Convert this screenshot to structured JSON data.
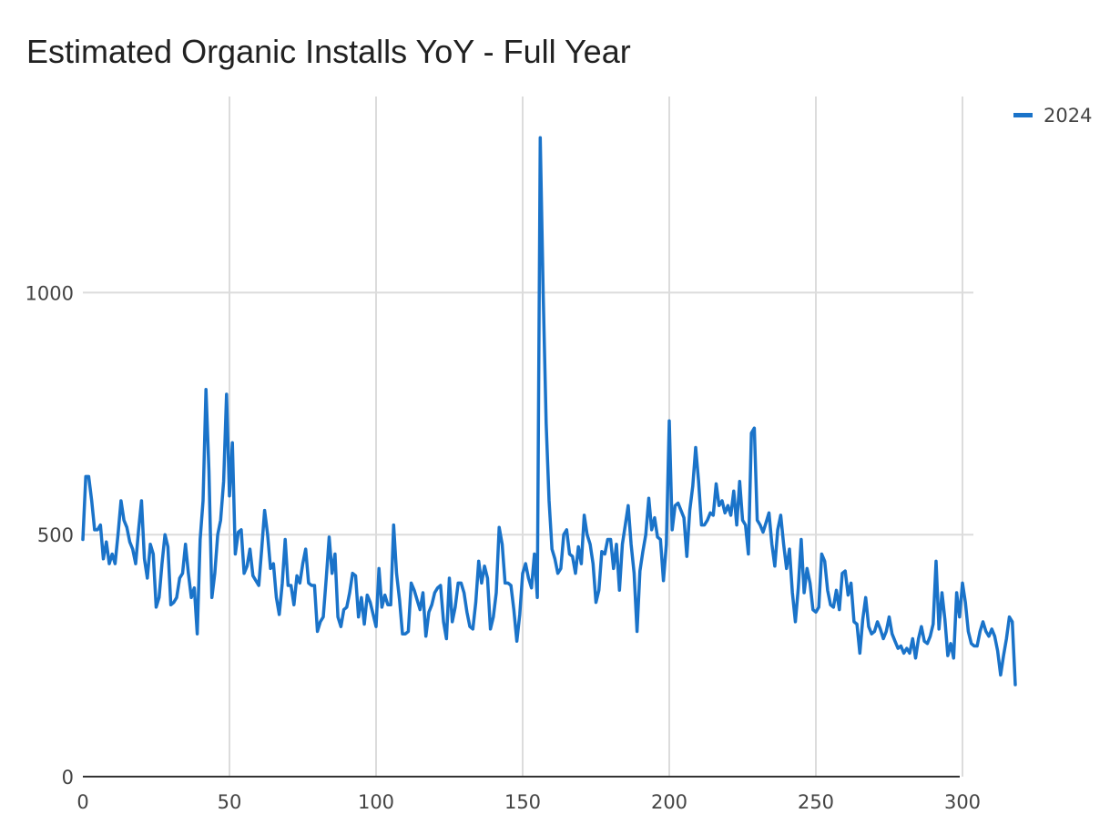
{
  "chart_data": {
    "type": "line",
    "title": "Estimated Organic Installs YoY - Full Year",
    "xlabel": "",
    "ylabel": "",
    "xlim": [
      0,
      303
    ],
    "ylim": [
      0,
      1250
    ],
    "x_ticks": [
      0,
      50,
      100,
      150,
      200,
      250,
      300
    ],
    "y_ticks": [
      0,
      500,
      1000
    ],
    "grid": true,
    "legend": "top-right",
    "series": [
      {
        "name": "2024",
        "color": "#1a73c9",
        "values": [
          490,
          620,
          620,
          570,
          510,
          510,
          520,
          450,
          485,
          440,
          460,
          440,
          500,
          570,
          530,
          515,
          485,
          470,
          440,
          510,
          570,
          450,
          410,
          480,
          460,
          350,
          370,
          440,
          500,
          475,
          355,
          360,
          370,
          410,
          420,
          480,
          420,
          370,
          390,
          295,
          490,
          570,
          800,
          630,
          370,
          420,
          500,
          530,
          610,
          790,
          580,
          690,
          460,
          505,
          510,
          420,
          435,
          470,
          415,
          405,
          395,
          470,
          550,
          500,
          430,
          440,
          370,
          335,
          400,
          490,
          395,
          395,
          355,
          415,
          400,
          440,
          470,
          400,
          395,
          395,
          300,
          320,
          330,
          410,
          495,
          420,
          460,
          330,
          310,
          345,
          350,
          380,
          420,
          415,
          330,
          370,
          315,
          375,
          360,
          335,
          310,
          430,
          350,
          375,
          355,
          355,
          520,
          420,
          365,
          295,
          295,
          300,
          400,
          385,
          365,
          345,
          380,
          290,
          340,
          355,
          380,
          390,
          395,
          320,
          285,
          410,
          320,
          350,
          400,
          400,
          380,
          340,
          310,
          305,
          360,
          445,
          400,
          435,
          410,
          305,
          330,
          380,
          515,
          480,
          400,
          400,
          395,
          345,
          280,
          335,
          420,
          440,
          410,
          390,
          460,
          370,
          1320,
          1000,
          730,
          570,
          470,
          450,
          420,
          430,
          500,
          510,
          460,
          455,
          420,
          475,
          440,
          540,
          500,
          480,
          440,
          360,
          385,
          465,
          460,
          490,
          490,
          430,
          480,
          385,
          480,
          520,
          560,
          480,
          420,
          300,
          425,
          465,
          500,
          575,
          510,
          535,
          495,
          490,
          405,
          480,
          735,
          510,
          560,
          565,
          550,
          535,
          455,
          550,
          600,
          680,
          610,
          520,
          520,
          530,
          545,
          540,
          605,
          560,
          570,
          545,
          560,
          540,
          590,
          520,
          610,
          530,
          520,
          460,
          710,
          720,
          530,
          520,
          505,
          525,
          545,
          480,
          435,
          510,
          540,
          480,
          430,
          470,
          380,
          320,
          390,
          490,
          380,
          430,
          400,
          345,
          340,
          350,
          460,
          445,
          385,
          355,
          350,
          385,
          345,
          420,
          425,
          375,
          400,
          320,
          315,
          255,
          325,
          370,
          310,
          295,
          300,
          320,
          305,
          285,
          300,
          330,
          295,
          280,
          265,
          270,
          255,
          265,
          255,
          285,
          245,
          285,
          310,
          280,
          275,
          290,
          315,
          445,
          305,
          380,
          325,
          250,
          275,
          245,
          380,
          330,
          400,
          360,
          300,
          275,
          270,
          270,
          300,
          320,
          300,
          290,
          305,
          290,
          260,
          210,
          250,
          285,
          330,
          320,
          190
        ]
      }
    ]
  }
}
